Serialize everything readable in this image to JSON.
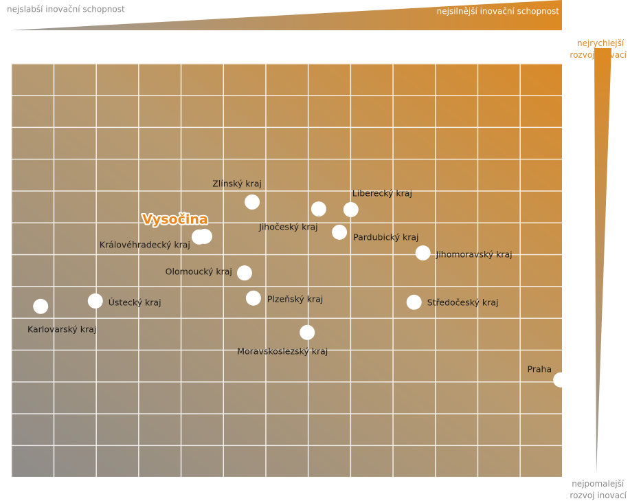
{
  "chart_data": {
    "type": "scatter",
    "annotations": {
      "top_left": "nejslabší inovační schopnost",
      "top_right": "nejsilnější inovační schopnost",
      "right_top": [
        "nejrychlejší",
        "rozvoj inovací"
      ],
      "right_bottom": [
        "nejpomalejší",
        "rozvoj inovací"
      ]
    },
    "categories": [
      "Zlínský kraj",
      "Jihočeský kraj",
      "Liberecký kraj",
      "Pardubický kraj",
      "Vysočina",
      "Královéhradecký kraj",
      "Jihomoravský kraj",
      "Olomoucký kraj",
      "Ústecký kraj",
      "Plzeňský kraj",
      "Středočeský kraj",
      "Karlovarský kraj",
      "Moravskoslezský kraj",
      "Praha"
    ],
    "x": [
      5.69,
      7.26,
      8.02,
      7.75,
      4.57,
      4.44,
      9.72,
      5.51,
      1.99,
      5.72,
      9.51,
      0.7,
      6.99,
      12.97
    ],
    "y": [
      8.64,
      8.42,
      8.4,
      7.69,
      7.56,
      7.54,
      7.04,
      6.41,
      5.53,
      5.62,
      5.49,
      5.36,
      4.54,
      3.05
    ],
    "xlim": [
      0,
      13
    ],
    "ylim": [
      0,
      13
    ],
    "color": "#ffffff",
    "highlight": "Vysočina",
    "highlight_color": "#e8871e"
  }
}
